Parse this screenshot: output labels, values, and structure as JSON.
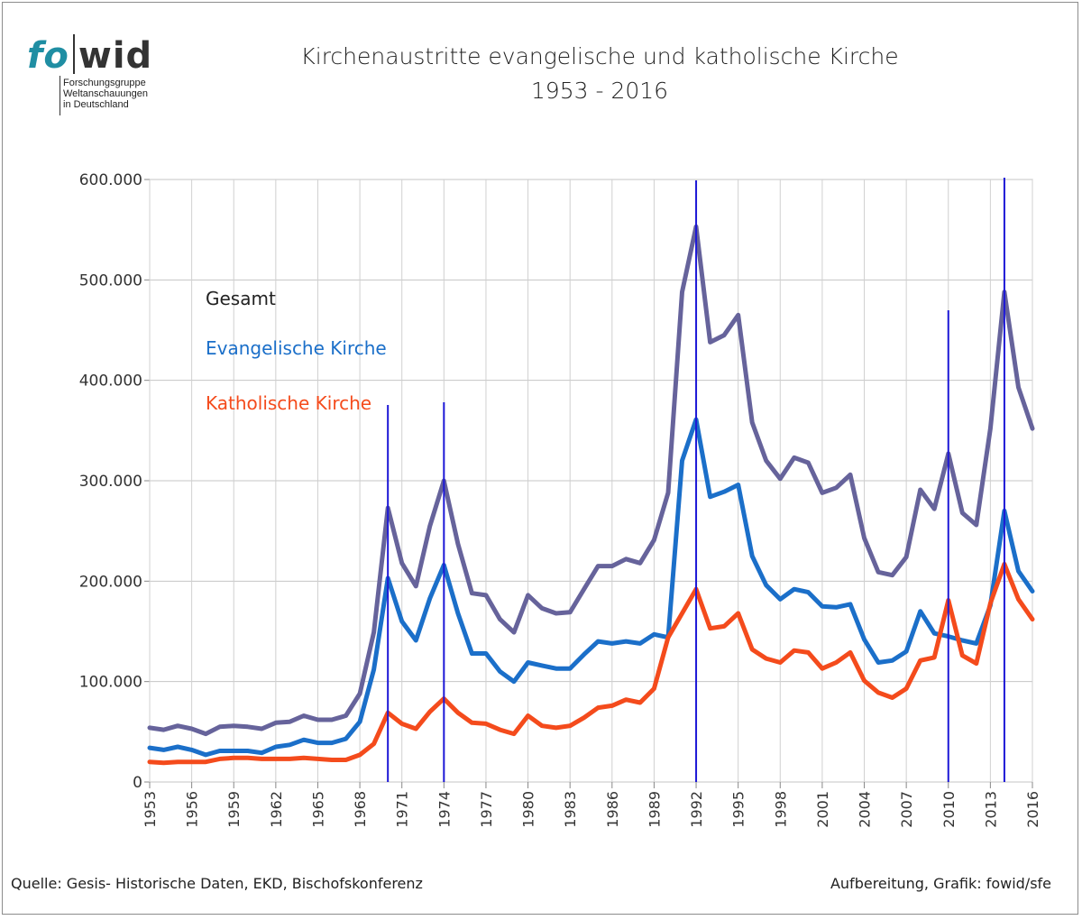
{
  "logo": {
    "left": "fo",
    "right": "wid",
    "sub": [
      "Forschungsgruppe",
      "Weltanschauungen",
      "in Deutschland"
    ]
  },
  "header": {
    "title_line1": "Kirchenaustritte evangelische und katholische Kirche",
    "title_line2": "1953 - 2016"
  },
  "footer": {
    "source": "Quelle: Gesis- Historische Daten, EKD, Bischofskonferenz",
    "credit": "Aufbereitung, Grafik: fowid/sfe"
  },
  "chart_data": {
    "type": "line",
    "x_start": 1953,
    "x_end": 2016,
    "ylim": [
      0,
      600000
    ],
    "y_ticks": [
      "0",
      "100.000",
      "200.000",
      "300.000",
      "400.000",
      "500.000",
      "600.000"
    ],
    "x_ticks": [
      "1953",
      "1956",
      "1959",
      "1962",
      "1965",
      "1968",
      "1971",
      "1974",
      "1977",
      "1980",
      "1983",
      "1986",
      "1989",
      "1992",
      "1995",
      "1998",
      "2001",
      "2004",
      "2007",
      "2010",
      "2013",
      "2016"
    ],
    "vertical_markers": [
      1970,
      1974,
      1992,
      2010,
      2014
    ],
    "grid": "horizontal and vertical",
    "legend_position": "top-left",
    "series": [
      {
        "name": "Gesamt",
        "color": "#66639b",
        "values": [
          54000,
          52000,
          56000,
          53000,
          48000,
          55000,
          56000,
          55000,
          53000,
          59000,
          60000,
          66000,
          62000,
          62000,
          66000,
          88000,
          149000,
          273000,
          218000,
          195000,
          255000,
          300000,
          237000,
          188000,
          186000,
          162000,
          149000,
          186000,
          173000,
          168000,
          169000,
          192000,
          215000,
          215000,
          222000,
          218000,
          241000,
          288000,
          488000,
          553000,
          438000,
          445000,
          465000,
          358000,
          320000,
          302000,
          323000,
          318000,
          288000,
          293000,
          306000,
          243000,
          209000,
          206000,
          224000,
          291000,
          272000,
          327000,
          268000,
          256000,
          352000,
          488000,
          393000,
          352000
        ]
      },
      {
        "name": "Evangelische Kirche",
        "color": "#1b6fc9",
        "values": [
          34000,
          32000,
          35000,
          32000,
          27000,
          31000,
          31000,
          31000,
          29000,
          35000,
          37000,
          42000,
          39000,
          39000,
          43000,
          60000,
          112000,
          203000,
          160000,
          141000,
          183000,
          216000,
          168000,
          128000,
          128000,
          110000,
          100000,
          119000,
          116000,
          113000,
          113000,
          127000,
          140000,
          138000,
          140000,
          138000,
          147000,
          144000,
          320000,
          361000,
          284000,
          289000,
          296000,
          225000,
          196000,
          182000,
          192000,
          189000,
          175000,
          174000,
          177000,
          142000,
          119000,
          121000,
          130000,
          170000,
          148000,
          145000,
          141000,
          138000,
          176000,
          270000,
          210000,
          190000
        ]
      },
      {
        "name": "Katholische Kirche",
        "color": "#f44b1c",
        "values": [
          20000,
          19000,
          20000,
          20000,
          20000,
          23000,
          24000,
          24000,
          23000,
          23000,
          23000,
          24000,
          23000,
          22000,
          22000,
          27000,
          38000,
          69000,
          58000,
          53000,
          70000,
          83000,
          69000,
          59000,
          58000,
          52000,
          48000,
          66000,
          56000,
          54000,
          56000,
          64000,
          74000,
          76000,
          82000,
          79000,
          93000,
          144000,
          168000,
          192000,
          153000,
          155000,
          168000,
          132000,
          123000,
          119000,
          131000,
          129000,
          113000,
          119000,
          129000,
          101000,
          89000,
          84000,
          93000,
          121000,
          124000,
          181000,
          126000,
          118000,
          178000,
          217000,
          182000,
          162000
        ]
      }
    ]
  }
}
